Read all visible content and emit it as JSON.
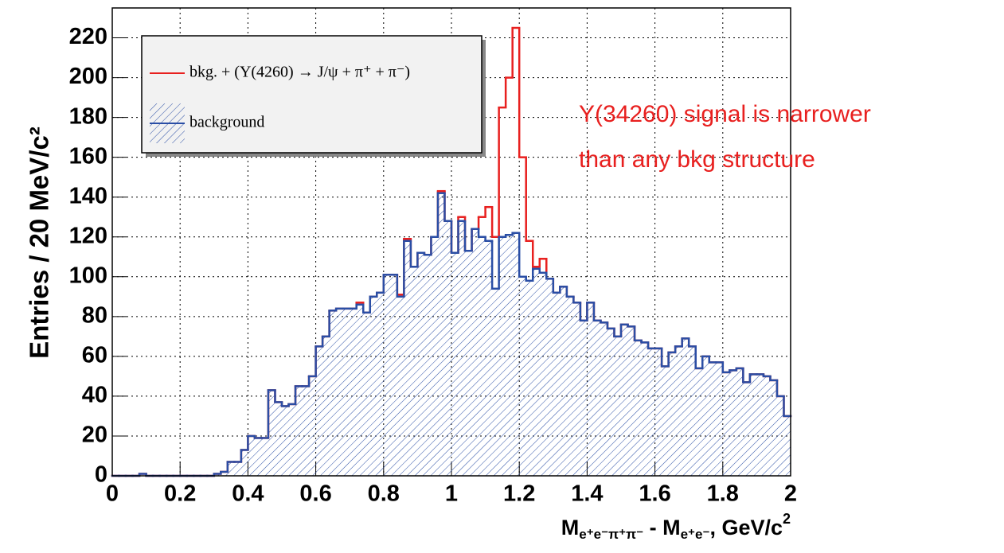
{
  "chart_data": {
    "type": "histogram",
    "y_label": "Entries / 20 MeV/c²",
    "x_label": [
      "M",
      "e⁺e⁻π⁺π⁻",
      " - M",
      "e⁺e⁻",
      ", GeV/c",
      "2"
    ],
    "annotation": [
      "Y(34260) signal is narrower",
      "than any bkg structure"
    ],
    "xlim": [
      0,
      2
    ],
    "ylim": [
      0,
      235
    ],
    "xticks": [
      0,
      0.2,
      0.4,
      0.6,
      0.8,
      1,
      1.2,
      1.4,
      1.6,
      1.8,
      2
    ],
    "yticks": [
      0,
      20,
      40,
      60,
      80,
      100,
      120,
      140,
      160,
      180,
      200,
      220
    ],
    "grid": true,
    "legend_position": "upper left",
    "bins": [
      0,
      0.02,
      0.04,
      0.06,
      0.08,
      0.1,
      0.12,
      0.14,
      0.16,
      0.18,
      0.2,
      0.22,
      0.24,
      0.26,
      0.28,
      0.3,
      0.32,
      0.34,
      0.36,
      0.38,
      0.4,
      0.42,
      0.44,
      0.46,
      0.48,
      0.5,
      0.52,
      0.54,
      0.56,
      0.58,
      0.6,
      0.62,
      0.64,
      0.66,
      0.68,
      0.7,
      0.72,
      0.74,
      0.76,
      0.78,
      0.8,
      0.82,
      0.84,
      0.86,
      0.88,
      0.9,
      0.92,
      0.94,
      0.96,
      0.98,
      1,
      1.02,
      1.04,
      1.06,
      1.08,
      1.1,
      1.12,
      1.14,
      1.16,
      1.18,
      1.2,
      1.22,
      1.24,
      1.26,
      1.28,
      1.3,
      1.32,
      1.34,
      1.36,
      1.38,
      1.4,
      1.42,
      1.44,
      1.46,
      1.48,
      1.5,
      1.52,
      1.54,
      1.56,
      1.58,
      1.6,
      1.62,
      1.64,
      1.66,
      1.68,
      1.7,
      1.72,
      1.74,
      1.76,
      1.78,
      1.8,
      1.82,
      1.84,
      1.86,
      1.88,
      1.9,
      1.92,
      1.94,
      1.96,
      1.98,
      2
    ],
    "series": [
      {
        "name": "bkg. + (Υ(4260) → J/ψ + π⁺ + π⁻)",
        "color": "#e8201f",
        "values": [
          0,
          0,
          0,
          0,
          1,
          0,
          0,
          0,
          0,
          0,
          0,
          0,
          0,
          0,
          0,
          1,
          2,
          7,
          7,
          13,
          20,
          19,
          19,
          43,
          37,
          35,
          36,
          45,
          45,
          50,
          65,
          70,
          83,
          84,
          84,
          84,
          87,
          82,
          90,
          92,
          101,
          101,
          91,
          119,
          105,
          112,
          111,
          120,
          143,
          128,
          112,
          130,
          113,
          124,
          130,
          135,
          120,
          185,
          200,
          225,
          160,
          118,
          105,
          109,
          99,
          92,
          95,
          90,
          87,
          78,
          87,
          78,
          77,
          74,
          70,
          76,
          75,
          68,
          67,
          64,
          64,
          55,
          62,
          65,
          69,
          65,
          54,
          60,
          57,
          57,
          52,
          53,
          54,
          47,
          51,
          51,
          50,
          48,
          40,
          30
        ]
      },
      {
        "name": "background",
        "color": "#2a4ea5",
        "hatch": true,
        "values": [
          0,
          0,
          0,
          0,
          1,
          0,
          0,
          0,
          0,
          0,
          0,
          0,
          0,
          0,
          0,
          1,
          2,
          7,
          7,
          13,
          20,
          19,
          19,
          43,
          37,
          35,
          36,
          45,
          45,
          50,
          65,
          70,
          83,
          84,
          84,
          84,
          86,
          82,
          90,
          92,
          101,
          101,
          90,
          118,
          105,
          112,
          111,
          120,
          142,
          128,
          112,
          128,
          113,
          124,
          120,
          118,
          94,
          120,
          121,
          122,
          100,
          98,
          104,
          102,
          99,
          92,
          95,
          90,
          87,
          78,
          87,
          78,
          77,
          74,
          70,
          76,
          75,
          68,
          67,
          64,
          64,
          55,
          62,
          65,
          69,
          65,
          54,
          60,
          57,
          57,
          52,
          53,
          54,
          47,
          51,
          51,
          50,
          48,
          40,
          30
        ]
      }
    ]
  }
}
